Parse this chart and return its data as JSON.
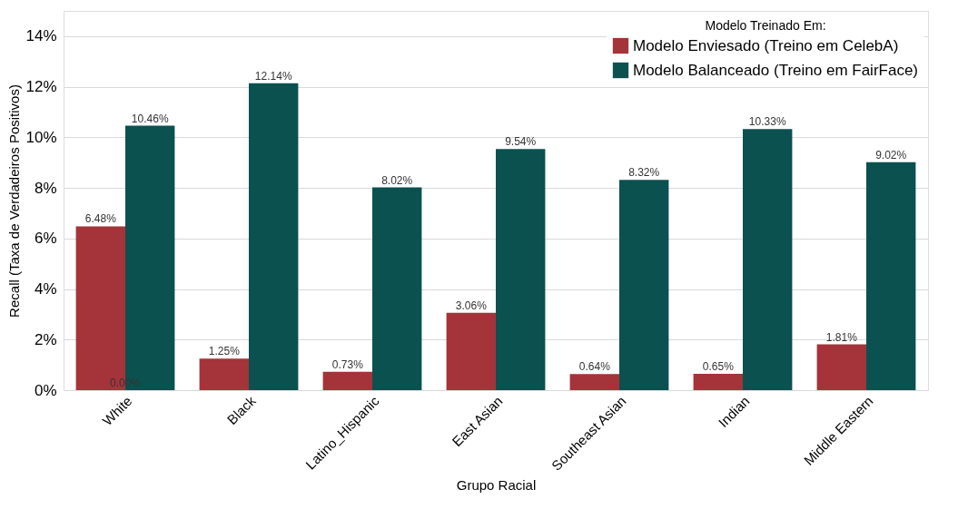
{
  "chart_data": {
    "type": "bar",
    "xlabel": "Grupo Racial",
    "ylabel": "Recall (Taxa de Verdadeiros Positivos)",
    "legend_title": "Modelo Treinado Em:",
    "legend": "top right",
    "grid": "y",
    "categories": [
      "White",
      "Black",
      "Latino_Hispanic",
      "East Asian",
      "Southeast Asian",
      "Indian",
      "Middle Eastern"
    ],
    "series": [
      {
        "name": "Modelo Enviesado (Treino em CelebA)",
        "color": "#a4343a",
        "values": [
          6.48,
          1.25,
          0.73,
          3.06,
          0.64,
          0.65,
          1.81
        ],
        "value_labels": [
          "6.48%",
          "1.25%",
          "0.73%",
          "3.06%",
          "0.64%",
          "0.65%",
          "1.81%"
        ]
      },
      {
        "name": "Modelo Balanceado (Treino em FairFace)",
        "color": "#0b5150",
        "values": [
          10.46,
          12.14,
          8.02,
          9.54,
          8.32,
          10.33,
          9.02
        ],
        "value_labels": [
          "10.46%",
          "12.14%",
          "8.02%",
          "9.54%",
          "8.32%",
          "10.33%",
          "9.02%"
        ]
      }
    ],
    "ylim": [
      0,
      15
    ],
    "yticks": [
      {
        "value": 0,
        "label": "0%"
      },
      {
        "value": 2,
        "label": "2%"
      },
      {
        "value": 4,
        "label": "4%"
      },
      {
        "value": 6,
        "label": "6%"
      },
      {
        "value": 8,
        "label": "8%"
      },
      {
        "value": 10,
        "label": "10%"
      },
      {
        "value": 12,
        "label": "12%"
      },
      {
        "value": 14,
        "label": "14%"
      }
    ],
    "annotations": [
      {
        "text": "0.00%",
        "x": "White",
        "y": 0
      }
    ]
  }
}
